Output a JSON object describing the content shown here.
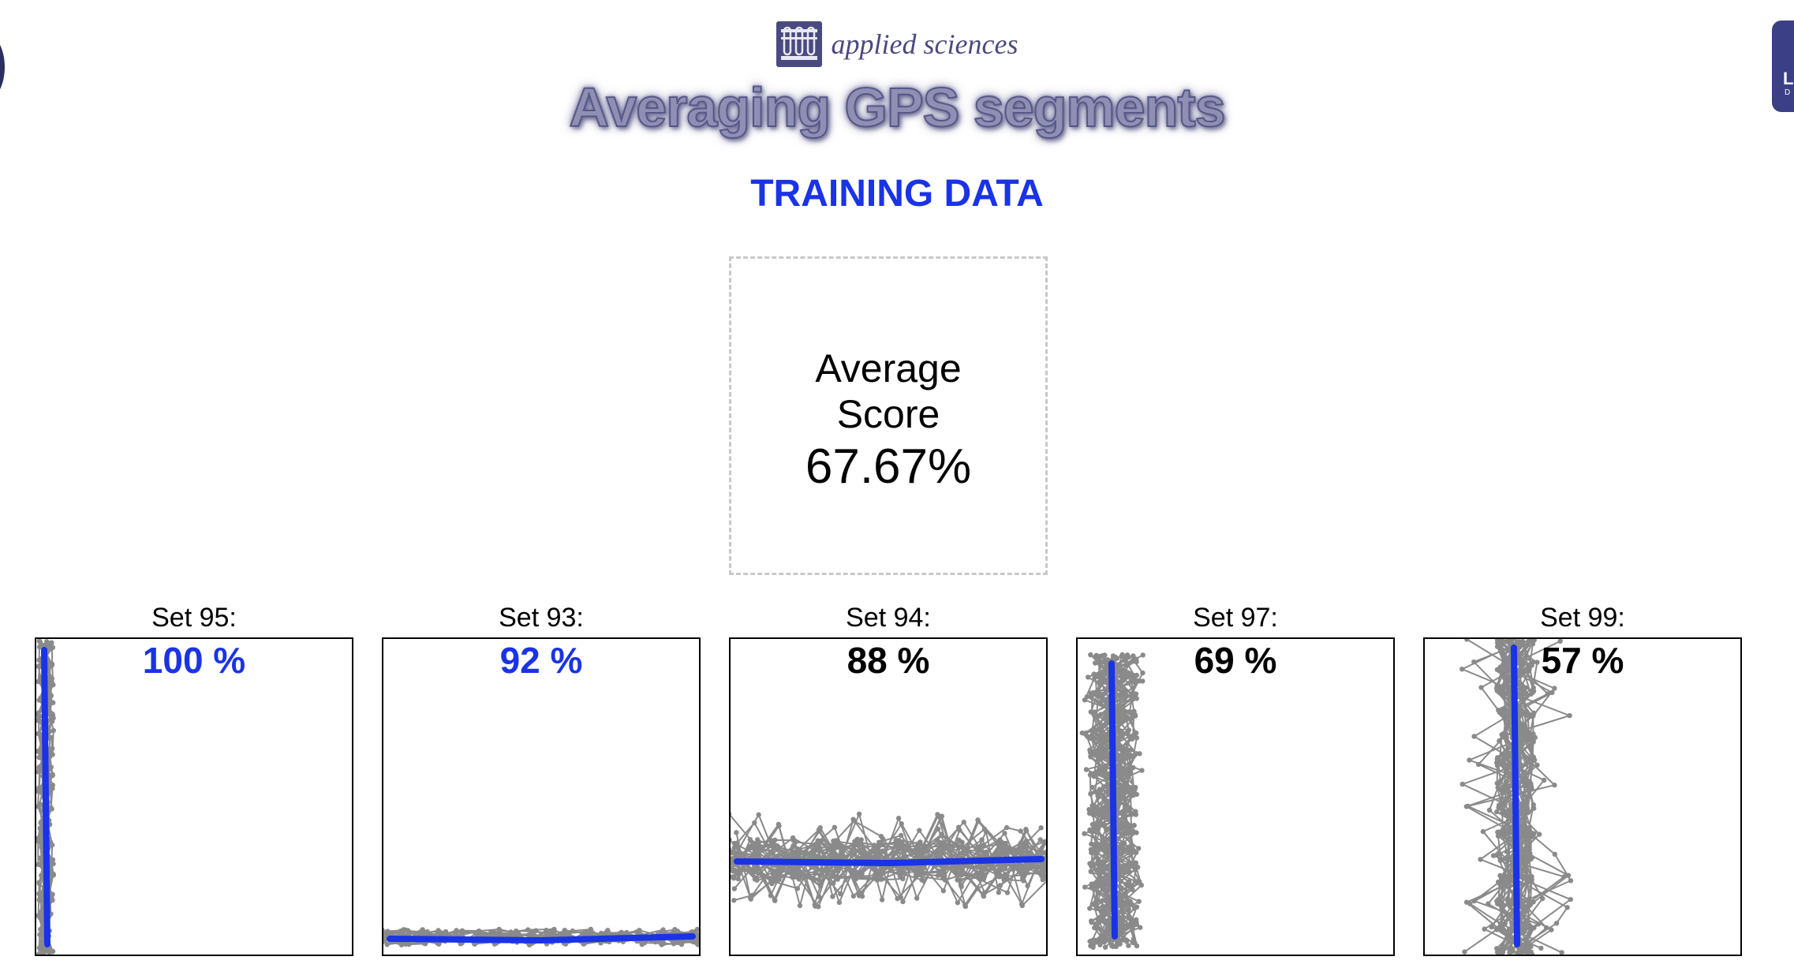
{
  "header": {
    "journal": "applied sciences",
    "logo_icon": "test-tubes-icon",
    "title": "Averaging GPS segments",
    "subtitle": "TRAINING DATA"
  },
  "score": {
    "label_line1": "Average",
    "label_line2": "Score",
    "value": "67.67%"
  },
  "side_tab": {
    "letter": "L",
    "small": "D"
  },
  "colors": {
    "title_fill": "#8f8fb4",
    "subtitle": "#1a33e6",
    "high_score": "#1a33e6",
    "low_score": "#000000",
    "track_gray": "#8a8a8a",
    "average_line": "#1a33e6"
  },
  "sets": [
    {
      "title": "Set 95:",
      "score": "100 %",
      "score_pct": 100,
      "highlight": true,
      "orientation": "vertical-left"
    },
    {
      "title": "Set 93:",
      "score": "92 %",
      "score_pct": 92,
      "highlight": true,
      "orientation": "horizontal-bottom"
    },
    {
      "title": "Set 94:",
      "score": "88 %",
      "score_pct": 88,
      "highlight": false,
      "orientation": "horizontal-middle"
    },
    {
      "title": "Set 97:",
      "score": "69 %",
      "score_pct": 69,
      "highlight": false,
      "orientation": "vertical-left-wide"
    },
    {
      "title": "Set 99:",
      "score": "57 %",
      "score_pct": 57,
      "highlight": false,
      "orientation": "vertical-scattered"
    }
  ]
}
